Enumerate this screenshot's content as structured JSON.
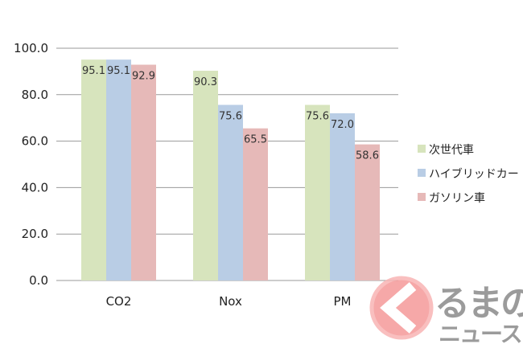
{
  "chart_data": {
    "type": "bar",
    "categories": [
      "CO2",
      "Nox",
      "PM"
    ],
    "series": [
      {
        "name": "次世代車",
        "values": [
          95.1,
          90.3,
          75.6
        ],
        "color": "#d7e4bd"
      },
      {
        "name": "ハイブリッドカー",
        "values": [
          95.1,
          75.6,
          72.0
        ],
        "color": "#b9cde5"
      },
      {
        "name": "ガソリン車",
        "values": [
          92.9,
          65.5,
          58.6
        ],
        "color": "#e6b9b8"
      }
    ],
    "data_labels": [
      [
        "95.1",
        "90.3",
        "75.6"
      ],
      [
        "95.1",
        "75.6",
        "72.0"
      ],
      [
        "92.9",
        "65.5",
        "58.6"
      ]
    ],
    "yticks": [
      "0.0",
      "20.0",
      "40.0",
      "60.0",
      "80.0",
      "100.0"
    ],
    "ylim": [
      0,
      100
    ],
    "grid": true,
    "legend_position": "right",
    "title": "",
    "xlabel": "",
    "ylabel": ""
  },
  "watermark": {
    "logo_text": "くるまのニュース",
    "line1": "るまの",
    "line2": "ニュース"
  }
}
